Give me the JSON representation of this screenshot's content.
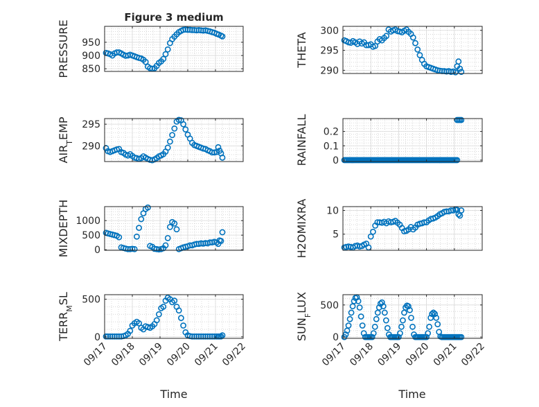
{
  "figure": {
    "title": "Figure 3 medium",
    "xlabel": "Time",
    "marker_color": "#0072bd",
    "axis_color": "#262626",
    "grid_color": "#c8c8c8"
  },
  "chart_data": [
    {
      "type": "scatter",
      "ylabel": "PRESSURE",
      "xlim": [
        0,
        5
      ],
      "ylim": [
        840,
        1010
      ],
      "yticks": [
        850,
        900,
        950
      ],
      "yticklabels": [
        "850",
        "900",
        "950"
      ],
      "x": [
        0.05,
        0.12,
        0.2,
        0.28,
        0.36,
        0.44,
        0.52,
        0.6,
        0.68,
        0.76,
        0.84,
        0.92,
        1.0,
        1.08,
        1.16,
        1.24,
        1.32,
        1.4,
        1.48,
        1.56,
        1.64,
        1.72,
        1.8,
        1.88,
        1.96,
        2.04,
        2.12,
        2.2,
        2.28,
        2.36,
        2.44,
        2.52,
        2.6,
        2.68,
        2.76,
        2.84,
        2.92,
        3.0,
        3.08,
        3.16,
        3.24,
        3.32,
        3.4,
        3.48,
        3.56,
        3.64,
        3.72,
        3.8,
        3.88,
        3.96,
        4.04,
        4.12,
        4.2,
        4.25
      ],
      "y": [
        910,
        908,
        905,
        900,
        908,
        912,
        912,
        908,
        903,
        899,
        900,
        903,
        900,
        897,
        894,
        891,
        889,
        884,
        876,
        858,
        852,
        850,
        852,
        861,
        872,
        878,
        887,
        905,
        923,
        947,
        962,
        971,
        980,
        988,
        993,
        997,
        998,
        997,
        997,
        996,
        996,
        995,
        996,
        995,
        994,
        995,
        993,
        991,
        988,
        986,
        982,
        979,
        975,
        972
      ]
    },
    {
      "type": "scatter",
      "ylabel": "THETA",
      "xlim": [
        0,
        5
      ],
      "ylim": [
        289.2,
        301.0
      ],
      "yticks": [
        290,
        295,
        300
      ],
      "yticklabels": [
        "290",
        "295",
        "300"
      ],
      "x": [
        0.05,
        0.12,
        0.2,
        0.28,
        0.36,
        0.44,
        0.52,
        0.6,
        0.68,
        0.76,
        0.84,
        0.92,
        1.0,
        1.08,
        1.16,
        1.24,
        1.32,
        1.4,
        1.48,
        1.56,
        1.64,
        1.72,
        1.8,
        1.88,
        1.96,
        2.04,
        2.12,
        2.2,
        2.28,
        2.36,
        2.44,
        2.52,
        2.6,
        2.68,
        2.76,
        2.84,
        2.92,
        3.0,
        3.08,
        3.16,
        3.24,
        3.32,
        3.4,
        3.48,
        3.56,
        3.64,
        3.72,
        3.8,
        3.88,
        3.96,
        4.04,
        4.1,
        4.15,
        4.2,
        4.25
      ],
      "y": [
        297.5,
        297.3,
        297.0,
        296.9,
        297.3,
        297.0,
        296.6,
        297.2,
        296.7,
        297.0,
        296.3,
        296.3,
        296.5,
        295.9,
        296.1,
        297.2,
        297.8,
        297.5,
        298.1,
        298.6,
        300.2,
        299.7,
        300.0,
        300.2,
        299.8,
        299.7,
        299.5,
        299.9,
        300.2,
        299.6,
        299.1,
        298.2,
        296.8,
        295.2,
        293.8,
        292.6,
        291.6,
        291.0,
        290.8,
        290.6,
        290.4,
        290.2,
        290.0,
        289.9,
        289.8,
        289.8,
        289.7,
        289.8,
        289.6,
        289.7,
        289.5,
        291.0,
        292.2,
        290.4,
        289.6
      ]
    },
    {
      "type": "scatter",
      "ylabel": "AIR_TEMP",
      "xlim": [
        0,
        5
      ],
      "ylim": [
        286.4,
        296.3
      ],
      "yticks": [
        290,
        295
      ],
      "yticklabels": [
        "290",
        "295"
      ],
      "x": [
        0.05,
        0.12,
        0.2,
        0.28,
        0.36,
        0.44,
        0.52,
        0.6,
        0.68,
        0.76,
        0.84,
        0.92,
        1.0,
        1.08,
        1.16,
        1.24,
        1.32,
        1.4,
        1.48,
        1.56,
        1.64,
        1.72,
        1.8,
        1.88,
        1.96,
        2.04,
        2.12,
        2.2,
        2.28,
        2.36,
        2.44,
        2.52,
        2.6,
        2.68,
        2.76,
        2.84,
        2.92,
        3.0,
        3.08,
        3.16,
        3.24,
        3.32,
        3.4,
        3.48,
        3.56,
        3.64,
        3.72,
        3.8,
        3.88,
        3.96,
        4.04,
        4.1,
        4.15,
        4.2,
        4.25
      ],
      "y": [
        289.5,
        288.8,
        288.6,
        288.8,
        289.0,
        289.2,
        289.3,
        288.6,
        288.4,
        288.0,
        287.8,
        288.1,
        287.7,
        287.3,
        287.2,
        287.0,
        287.2,
        287.6,
        287.3,
        287.0,
        286.8,
        286.7,
        286.9,
        287.2,
        287.6,
        287.8,
        288.1,
        288.7,
        289.6,
        291.0,
        292.5,
        294.0,
        295.6,
        296.0,
        295.9,
        295.0,
        293.8,
        292.6,
        291.7,
        290.7,
        290.2,
        290.0,
        289.8,
        289.6,
        289.4,
        289.3,
        289.0,
        288.8,
        288.5,
        288.5,
        288.6,
        289.7,
        288.9,
        288.3,
        287.3
      ]
    },
    {
      "type": "scatter",
      "ylabel": "RAINFALL",
      "xlim": [
        0,
        5
      ],
      "ylim": [
        -0.01,
        0.29
      ],
      "yticks": [
        0,
        0.1,
        0.2
      ],
      "yticklabels": [
        "0",
        "0.1",
        "0.2"
      ],
      "x": [
        0.05,
        0.1,
        0.15,
        0.2,
        0.25,
        0.3,
        0.35,
        0.4,
        0.45,
        0.5,
        0.55,
        0.6,
        0.65,
        0.7,
        0.75,
        0.8,
        0.85,
        0.9,
        0.95,
        1.0,
        1.05,
        1.1,
        1.15,
        1.2,
        1.25,
        1.3,
        1.35,
        1.4,
        1.45,
        1.5,
        1.55,
        1.6,
        1.65,
        1.7,
        1.75,
        1.8,
        1.85,
        1.9,
        1.95,
        2.0,
        2.05,
        2.1,
        2.15,
        2.2,
        2.25,
        2.3,
        2.35,
        2.4,
        2.45,
        2.5,
        2.55,
        2.6,
        2.65,
        2.7,
        2.75,
        2.8,
        2.85,
        2.9,
        2.95,
        3.0,
        3.05,
        3.1,
        3.15,
        3.2,
        3.25,
        3.3,
        3.35,
        3.4,
        3.45,
        3.5,
        3.55,
        3.6,
        3.65,
        3.7,
        3.75,
        3.8,
        3.85,
        3.9,
        3.95,
        4.0,
        4.05,
        4.1,
        4.1,
        4.15,
        4.2,
        4.25
      ],
      "y": [
        0,
        0,
        0,
        0,
        0,
        0,
        0,
        0,
        0,
        0,
        0,
        0,
        0,
        0,
        0,
        0,
        0,
        0,
        0,
        0,
        0,
        0,
        0,
        0,
        0,
        0,
        0,
        0,
        0,
        0,
        0,
        0,
        0,
        0,
        0,
        0,
        0,
        0,
        0,
        0,
        0,
        0,
        0,
        0,
        0,
        0,
        0,
        0,
        0,
        0,
        0,
        0,
        0,
        0,
        0,
        0,
        0,
        0,
        0,
        0,
        0,
        0,
        0,
        0,
        0,
        0,
        0,
        0,
        0,
        0,
        0,
        0,
        0,
        0,
        0,
        0,
        0,
        0,
        0,
        0,
        0,
        0,
        0.28,
        0.28,
        0.28,
        0.28
      ]
    },
    {
      "type": "scatter",
      "ylabel": "MIXDEPTH",
      "xlim": [
        0,
        5
      ],
      "ylim": [
        -20,
        1480
      ],
      "yticks": [
        0,
        500,
        1000
      ],
      "yticklabels": [
        "0",
        "500",
        "1000"
      ],
      "x": [
        0.05,
        0.12,
        0.2,
        0.28,
        0.36,
        0.44,
        0.52,
        0.6,
        0.68,
        0.76,
        0.84,
        0.92,
        1.0,
        1.08,
        1.16,
        1.24,
        1.32,
        1.4,
        1.48,
        1.56,
        1.64,
        1.72,
        1.8,
        1.88,
        1.96,
        2.04,
        2.12,
        2.2,
        2.28,
        2.36,
        2.44,
        2.52,
        2.6,
        2.68,
        2.76,
        2.84,
        2.92,
        3.0,
        3.08,
        3.16,
        3.24,
        3.32,
        3.4,
        3.48,
        3.56,
        3.64,
        3.72,
        3.8,
        3.88,
        3.96,
        4.04,
        4.1,
        4.15,
        4.2,
        4.25
      ],
      "y": [
        580,
        560,
        540,
        520,
        500,
        480,
        430,
        80,
        60,
        40,
        20,
        20,
        30,
        20,
        450,
        750,
        1050,
        1250,
        1400,
        1450,
        130,
        100,
        30,
        20,
        10,
        20,
        50,
        150,
        400,
        780,
        950,
        900,
        700,
        20,
        50,
        80,
        100,
        120,
        150,
        150,
        180,
        200,
        200,
        220,
        210,
        230,
        220,
        250,
        250,
        270,
        250,
        200,
        320,
        300,
        600
      ]
    },
    {
      "type": "scatter",
      "ylabel": "H2OMIXRA",
      "xlim": [
        0,
        5
      ],
      "ylim": [
        1.6,
        10.8
      ],
      "yticks": [
        5,
        10
      ],
      "yticklabels": [
        "5",
        "10"
      ],
      "x": [
        0.05,
        0.12,
        0.2,
        0.28,
        0.36,
        0.44,
        0.52,
        0.6,
        0.68,
        0.76,
        0.84,
        0.92,
        1.0,
        1.08,
        1.16,
        1.24,
        1.32,
        1.4,
        1.48,
        1.56,
        1.64,
        1.72,
        1.8,
        1.88,
        1.96,
        2.04,
        2.12,
        2.2,
        2.28,
        2.36,
        2.44,
        2.52,
        2.6,
        2.68,
        2.76,
        2.84,
        2.92,
        3.0,
        3.08,
        3.16,
        3.24,
        3.32,
        3.4,
        3.48,
        3.56,
        3.64,
        3.72,
        3.8,
        3.88,
        3.96,
        4.04,
        4.1,
        4.15,
        4.2,
        4.25
      ],
      "y": [
        2.2,
        2.3,
        2.4,
        2.3,
        2.2,
        2.5,
        2.6,
        2.4,
        2.5,
        2.8,
        3.0,
        2.2,
        4.5,
        5.5,
        6.8,
        7.5,
        7.5,
        7.4,
        7.6,
        7.3,
        7.7,
        7.5,
        7.6,
        7.8,
        7.4,
        7.0,
        6.3,
        5.6,
        5.7,
        6.0,
        6.5,
        6.0,
        6.4,
        7.0,
        7.2,
        7.3,
        7.5,
        7.5,
        7.9,
        8.2,
        8.3,
        8.5,
        8.8,
        9.2,
        9.4,
        9.7,
        9.8,
        9.8,
        10.0,
        10.0,
        10.2,
        10.1,
        9.2,
        8.9,
        10.0
      ]
    },
    {
      "type": "scatter",
      "ylabel": "TERR_MSL",
      "xlim": [
        0,
        5
      ],
      "ylim": [
        -20,
        560
      ],
      "yticks": [
        0,
        500
      ],
      "yticklabels": [
        "0",
        "500"
      ],
      "x": [
        0.05,
        0.12,
        0.2,
        0.28,
        0.36,
        0.44,
        0.52,
        0.6,
        0.68,
        0.76,
        0.84,
        0.92,
        1.0,
        1.08,
        1.16,
        1.24,
        1.32,
        1.4,
        1.48,
        1.56,
        1.64,
        1.72,
        1.8,
        1.88,
        1.96,
        2.04,
        2.12,
        2.2,
        2.28,
        2.36,
        2.44,
        2.52,
        2.6,
        2.68,
        2.76,
        2.84,
        2.92,
        3.0,
        3.08,
        3.16,
        3.24,
        3.32,
        3.4,
        3.48,
        3.56,
        3.64,
        3.72,
        3.8,
        3.88,
        3.96,
        4.04,
        4.1,
        4.15,
        4.2,
        4.25
      ],
      "y": [
        5,
        5,
        5,
        5,
        5,
        5,
        5,
        5,
        10,
        20,
        40,
        80,
        150,
        180,
        200,
        180,
        120,
        100,
        140,
        130,
        120,
        140,
        170,
        220,
        300,
        380,
        400,
        480,
        520,
        500,
        460,
        480,
        400,
        350,
        250,
        150,
        60,
        20,
        10,
        5,
        5,
        5,
        5,
        5,
        5,
        5,
        5,
        5,
        5,
        5,
        5,
        5,
        5,
        5,
        20
      ]
    },
    {
      "type": "scatter",
      "ylabel": "SUN_FLUX",
      "xlim": [
        0,
        5
      ],
      "ylim": [
        -20,
        660
      ],
      "yticks": [
        0,
        500
      ],
      "yticklabels": [
        "0",
        "500"
      ],
      "x": [
        0.05,
        0.1,
        0.15,
        0.2,
        0.25,
        0.3,
        0.35,
        0.4,
        0.45,
        0.5,
        0.55,
        0.6,
        0.65,
        0.7,
        0.75,
        0.8,
        0.85,
        0.9,
        0.95,
        1.0,
        1.05,
        1.1,
        1.15,
        1.2,
        1.25,
        1.3,
        1.35,
        1.4,
        1.45,
        1.5,
        1.55,
        1.6,
        1.65,
        1.7,
        1.75,
        1.8,
        1.85,
        1.9,
        1.95,
        2.0,
        2.05,
        2.1,
        2.15,
        2.2,
        2.25,
        2.3,
        2.35,
        2.4,
        2.45,
        2.5,
        2.55,
        2.6,
        2.65,
        2.7,
        2.75,
        2.8,
        2.85,
        2.9,
        2.95,
        3.0,
        3.05,
        3.1,
        3.15,
        3.2,
        3.25,
        3.3,
        3.35,
        3.4,
        3.45,
        3.5,
        3.55,
        3.6,
        3.65,
        3.7,
        3.75,
        3.8,
        3.85,
        3.9,
        3.95,
        4.0,
        4.05,
        4.1,
        4.15,
        4.2,
        4.25
      ],
      "y": [
        0,
        40,
        100,
        180,
        280,
        380,
        480,
        560,
        610,
        620,
        560,
        460,
        320,
        180,
        60,
        0,
        0,
        0,
        0,
        0,
        0,
        60,
        160,
        280,
        380,
        460,
        520,
        540,
        480,
        380,
        260,
        140,
        40,
        0,
        0,
        0,
        0,
        0,
        0,
        0,
        60,
        160,
        260,
        380,
        460,
        490,
        480,
        420,
        300,
        160,
        40,
        0,
        0,
        0,
        0,
        0,
        0,
        0,
        0,
        0,
        60,
        160,
        300,
        360,
        380,
        360,
        300,
        200,
        80,
        10,
        0,
        0,
        0,
        0,
        0,
        0,
        0,
        0,
        0,
        0,
        0,
        0,
        0,
        0,
        0
      ]
    }
  ],
  "xaxis": {
    "tick_values": [
      0,
      1,
      2,
      3,
      4,
      5
    ],
    "tick_labels": [
      "09/17",
      "09/18",
      "09/19",
      "09/20",
      "09/21",
      "09/22"
    ]
  }
}
